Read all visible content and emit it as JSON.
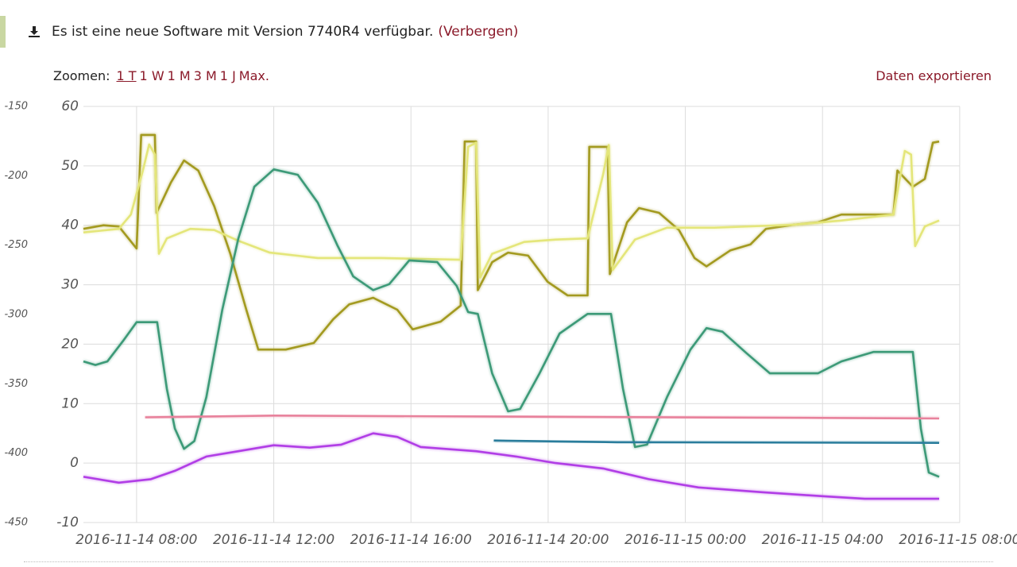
{
  "banner": {
    "message": "Es ist eine neue Software mit Version 7740R4 verfügbar.",
    "hide_link": "(Verbergen)"
  },
  "zoom": {
    "label": "Zoomen:",
    "options": [
      "1 T",
      "1 W",
      "1 M",
      "3 M",
      "1 J",
      "Max."
    ]
  },
  "export_link": "Daten exportieren",
  "chart_data": {
    "type": "line",
    "xlim": [
      "2016-11-14 06:27",
      "2016-11-15 07:56"
    ],
    "xticks": [
      "2016-11-14 08:00",
      "2016-11-14 12:00",
      "2016-11-14 16:00",
      "2016-11-14 20:00",
      "2016-11-15 00:00",
      "2016-11-15 04:00",
      "2016-11-15 08:00"
    ],
    "ylim": [
      -10,
      60
    ],
    "yticks": [
      -10,
      0,
      10,
      20,
      30,
      40,
      50,
      60
    ],
    "y2lim": [
      -450,
      -150
    ],
    "y2ticks": [
      -450,
      -400,
      -350,
      -300,
      -250,
      -200,
      -150
    ],
    "grid": true,
    "series": [
      {
        "color": "#a39a20",
        "x": [
          "2016-11-14 06:27",
          "2016-11-14 07:02",
          "2016-11-14 07:29",
          "2016-11-14 08:00",
          "2016-11-14 08:08",
          "2016-11-14 08:32",
          "2016-11-14 08:35",
          "2016-11-14 09:00",
          "2016-11-14 09:23",
          "2016-11-14 09:48",
          "2016-11-14 10:16",
          "2016-11-14 10:44",
          "2016-11-14 11:12",
          "2016-11-14 11:33",
          "2016-11-14 12:21",
          "2016-11-14 13:10",
          "2016-11-14 13:44",
          "2016-11-14 14:12",
          "2016-11-14 14:54",
          "2016-11-14 15:36",
          "2016-11-14 16:03",
          "2016-11-14 16:52",
          "2016-11-14 17:27",
          "2016-11-14 17:34",
          "2016-11-14 17:54",
          "2016-11-14 17:57",
          "2016-11-14 18:22",
          "2016-11-14 18:50",
          "2016-11-14 19:25",
          "2016-11-14 19:59",
          "2016-11-14 20:34",
          "2016-11-14 21:09",
          "2016-11-14 21:12",
          "2016-11-14 21:44",
          "2016-11-14 21:48",
          "2016-11-14 22:18",
          "2016-11-14 22:39",
          "2016-11-14 23:14",
          "2016-11-14 23:49",
          "2016-11-15 00:16",
          "2016-11-15 00:37",
          "2016-11-15 01:19",
          "2016-11-15 01:54",
          "2016-11-15 02:21",
          "2016-11-15 03:10",
          "2016-11-15 03:52",
          "2016-11-15 04:33",
          "2016-11-15 06:04",
          "2016-11-15 06:11",
          "2016-11-15 06:38",
          "2016-11-15 06:59",
          "2016-11-15 07:13",
          "2016-11-15 07:24"
        ],
        "values": [
          39.4,
          40,
          39.8,
          36.1,
          55.2,
          55.2,
          42.1,
          47.2,
          50.9,
          49.2,
          43.2,
          35.2,
          25.8,
          19.1,
          19.1,
          20.2,
          24.2,
          26.7,
          27.8,
          25.8,
          22.5,
          23.8,
          26.5,
          54.1,
          54.1,
          29.1,
          33.8,
          35.4,
          34.9,
          30.5,
          28.2,
          28.2,
          53.2,
          53.2,
          31.8,
          40.5,
          42.9,
          42.1,
          39.2,
          34.5,
          33.1,
          35.8,
          36.8,
          39.4,
          40.1,
          40.5,
          41.8,
          41.8,
          49.2,
          46.5,
          47.8,
          53.9,
          54.1
        ]
      },
      {
        "color": "#e4e67a",
        "x": [
          "2016-11-14 06:27",
          "2016-11-14 07:29",
          "2016-11-14 07:50",
          "2016-11-14 08:11",
          "2016-11-14 08:22",
          "2016-11-14 08:32",
          "2016-11-14 08:39",
          "2016-11-14 08:53",
          "2016-11-14 09:34",
          "2016-11-14 10:16",
          "2016-11-14 10:58",
          "2016-11-14 11:53",
          "2016-11-14 13:17",
          "2016-11-14 15:08",
          "2016-11-14 17:27",
          "2016-11-14 17:40",
          "2016-11-14 17:54",
          "2016-11-14 18:01",
          "2016-11-14 18:22",
          "2016-11-14 19:18",
          "2016-11-14 20:13",
          "2016-11-14 21:09",
          "2016-11-14 21:36",
          "2016-11-14 21:46",
          "2016-11-14 21:53",
          "2016-11-14 22:32",
          "2016-11-14 23:28",
          "2016-11-15 00:51",
          "2016-11-15 03:10",
          "2016-11-15 04:33",
          "2016-11-15 06:04",
          "2016-11-15 06:24",
          "2016-11-15 06:35",
          "2016-11-15 06:42",
          "2016-11-15 06:59",
          "2016-11-15 07:24"
        ],
        "values": [
          38.8,
          39.4,
          41.8,
          49.2,
          53.6,
          51.9,
          35.2,
          37.8,
          39.4,
          39.2,
          37.4,
          35.4,
          34.5,
          34.5,
          34.2,
          53.2,
          53.9,
          31.2,
          35.2,
          37.2,
          37.6,
          37.8,
          48.5,
          53.5,
          32.5,
          37.6,
          39.6,
          39.6,
          40.1,
          40.8,
          41.8,
          52.5,
          51.9,
          36.5,
          39.8,
          40.8
        ]
      },
      {
        "color": "#3d9a78",
        "x": [
          "2016-11-14 06:27",
          "2016-11-14 06:48",
          "2016-11-14 07:09",
          "2016-11-14 07:36",
          "2016-11-14 08:00",
          "2016-11-14 08:36",
          "2016-11-14 08:53",
          "2016-11-14 09:07",
          "2016-11-14 09:23",
          "2016-11-14 09:41",
          "2016-11-14 10:02",
          "2016-11-14 10:30",
          "2016-11-14 10:58",
          "2016-11-14 11:26",
          "2016-11-14 12:00",
          "2016-11-14 12:42",
          "2016-11-14 13:17",
          "2016-11-14 13:52",
          "2016-11-14 14:19",
          "2016-11-14 14:54",
          "2016-11-14 15:22",
          "2016-11-14 15:57",
          "2016-11-14 16:46",
          "2016-11-14 17:20",
          "2016-11-14 17:40",
          "2016-11-14 17:57",
          "2016-11-14 18:22",
          "2016-11-14 18:50",
          "2016-11-14 19:11",
          "2016-11-14 19:45",
          "2016-11-14 20:20",
          "2016-11-14 21:09",
          "2016-11-14 21:50",
          "2016-11-14 22:11",
          "2016-11-14 22:32",
          "2016-11-14 22:53",
          "2016-11-14 23:28",
          "2016-11-15 00:09",
          "2016-11-15 00:37",
          "2016-11-15 01:05",
          "2016-11-15 01:47",
          "2016-11-15 02:28",
          "2016-11-15 03:52",
          "2016-11-15 04:33",
          "2016-11-15 05:29",
          "2016-11-15 06:38",
          "2016-11-15 06:52",
          "2016-11-15 07:06",
          "2016-11-15 07:24"
        ],
        "values": [
          17.1,
          16.5,
          17.1,
          20.5,
          23.7,
          23.7,
          12.5,
          5.8,
          2.4,
          3.7,
          11.1,
          25.8,
          37.8,
          46.5,
          49.4,
          48.5,
          43.8,
          36.5,
          31.4,
          29.1,
          30.1,
          34.1,
          33.8,
          29.8,
          25.4,
          25.1,
          15.1,
          8.7,
          9.1,
          15.1,
          21.8,
          25.1,
          25.1,
          12.5,
          2.7,
          3.1,
          11.1,
          19.1,
          22.7,
          22.1,
          18.5,
          15.1,
          15.1,
          17.1,
          18.7,
          18.7,
          5.8,
          -1.6,
          -2.3
        ]
      },
      {
        "color": "#e8829c",
        "x": [
          "2016-11-14 08:15",
          "2016-11-14 12:00",
          "2016-11-14 20:00",
          "2016-11-15 04:00",
          "2016-11-15 07:24"
        ],
        "values": [
          7.7,
          8.0,
          7.8,
          7.6,
          7.5
        ]
      },
      {
        "color": "#2a7d9c",
        "x": [
          "2016-11-14 18:25",
          "2016-11-14 22:00",
          "2016-11-15 07:24"
        ],
        "values": [
          3.8,
          3.5,
          3.4
        ]
      },
      {
        "color": "#b13ee6",
        "x": [
          "2016-11-14 06:27",
          "2016-11-14 07:29",
          "2016-11-14 08:25",
          "2016-11-14 09:07",
          "2016-11-14 10:02",
          "2016-11-14 10:58",
          "2016-11-14 12:00",
          "2016-11-14 13:03",
          "2016-11-14 13:58",
          "2016-11-14 14:54",
          "2016-11-14 15:36",
          "2016-11-14 16:17",
          "2016-11-14 17:54",
          "2016-11-14 19:04",
          "2016-11-14 20:13",
          "2016-11-14 21:36",
          "2016-11-14 22:56",
          "2016-11-15 00:23",
          "2016-11-15 02:14",
          "2016-11-15 04:05",
          "2016-11-15 05:14",
          "2016-11-15 07:24"
        ],
        "values": [
          -2.3,
          -3.3,
          -2.7,
          -1.3,
          1.1,
          2.0,
          3.0,
          2.6,
          3.1,
          5.0,
          4.4,
          2.7,
          2.0,
          1.1,
          0.0,
          -0.9,
          -2.7,
          -4.1,
          -4.9,
          -5.6,
          -6.0,
          -6.0
        ]
      }
    ]
  }
}
